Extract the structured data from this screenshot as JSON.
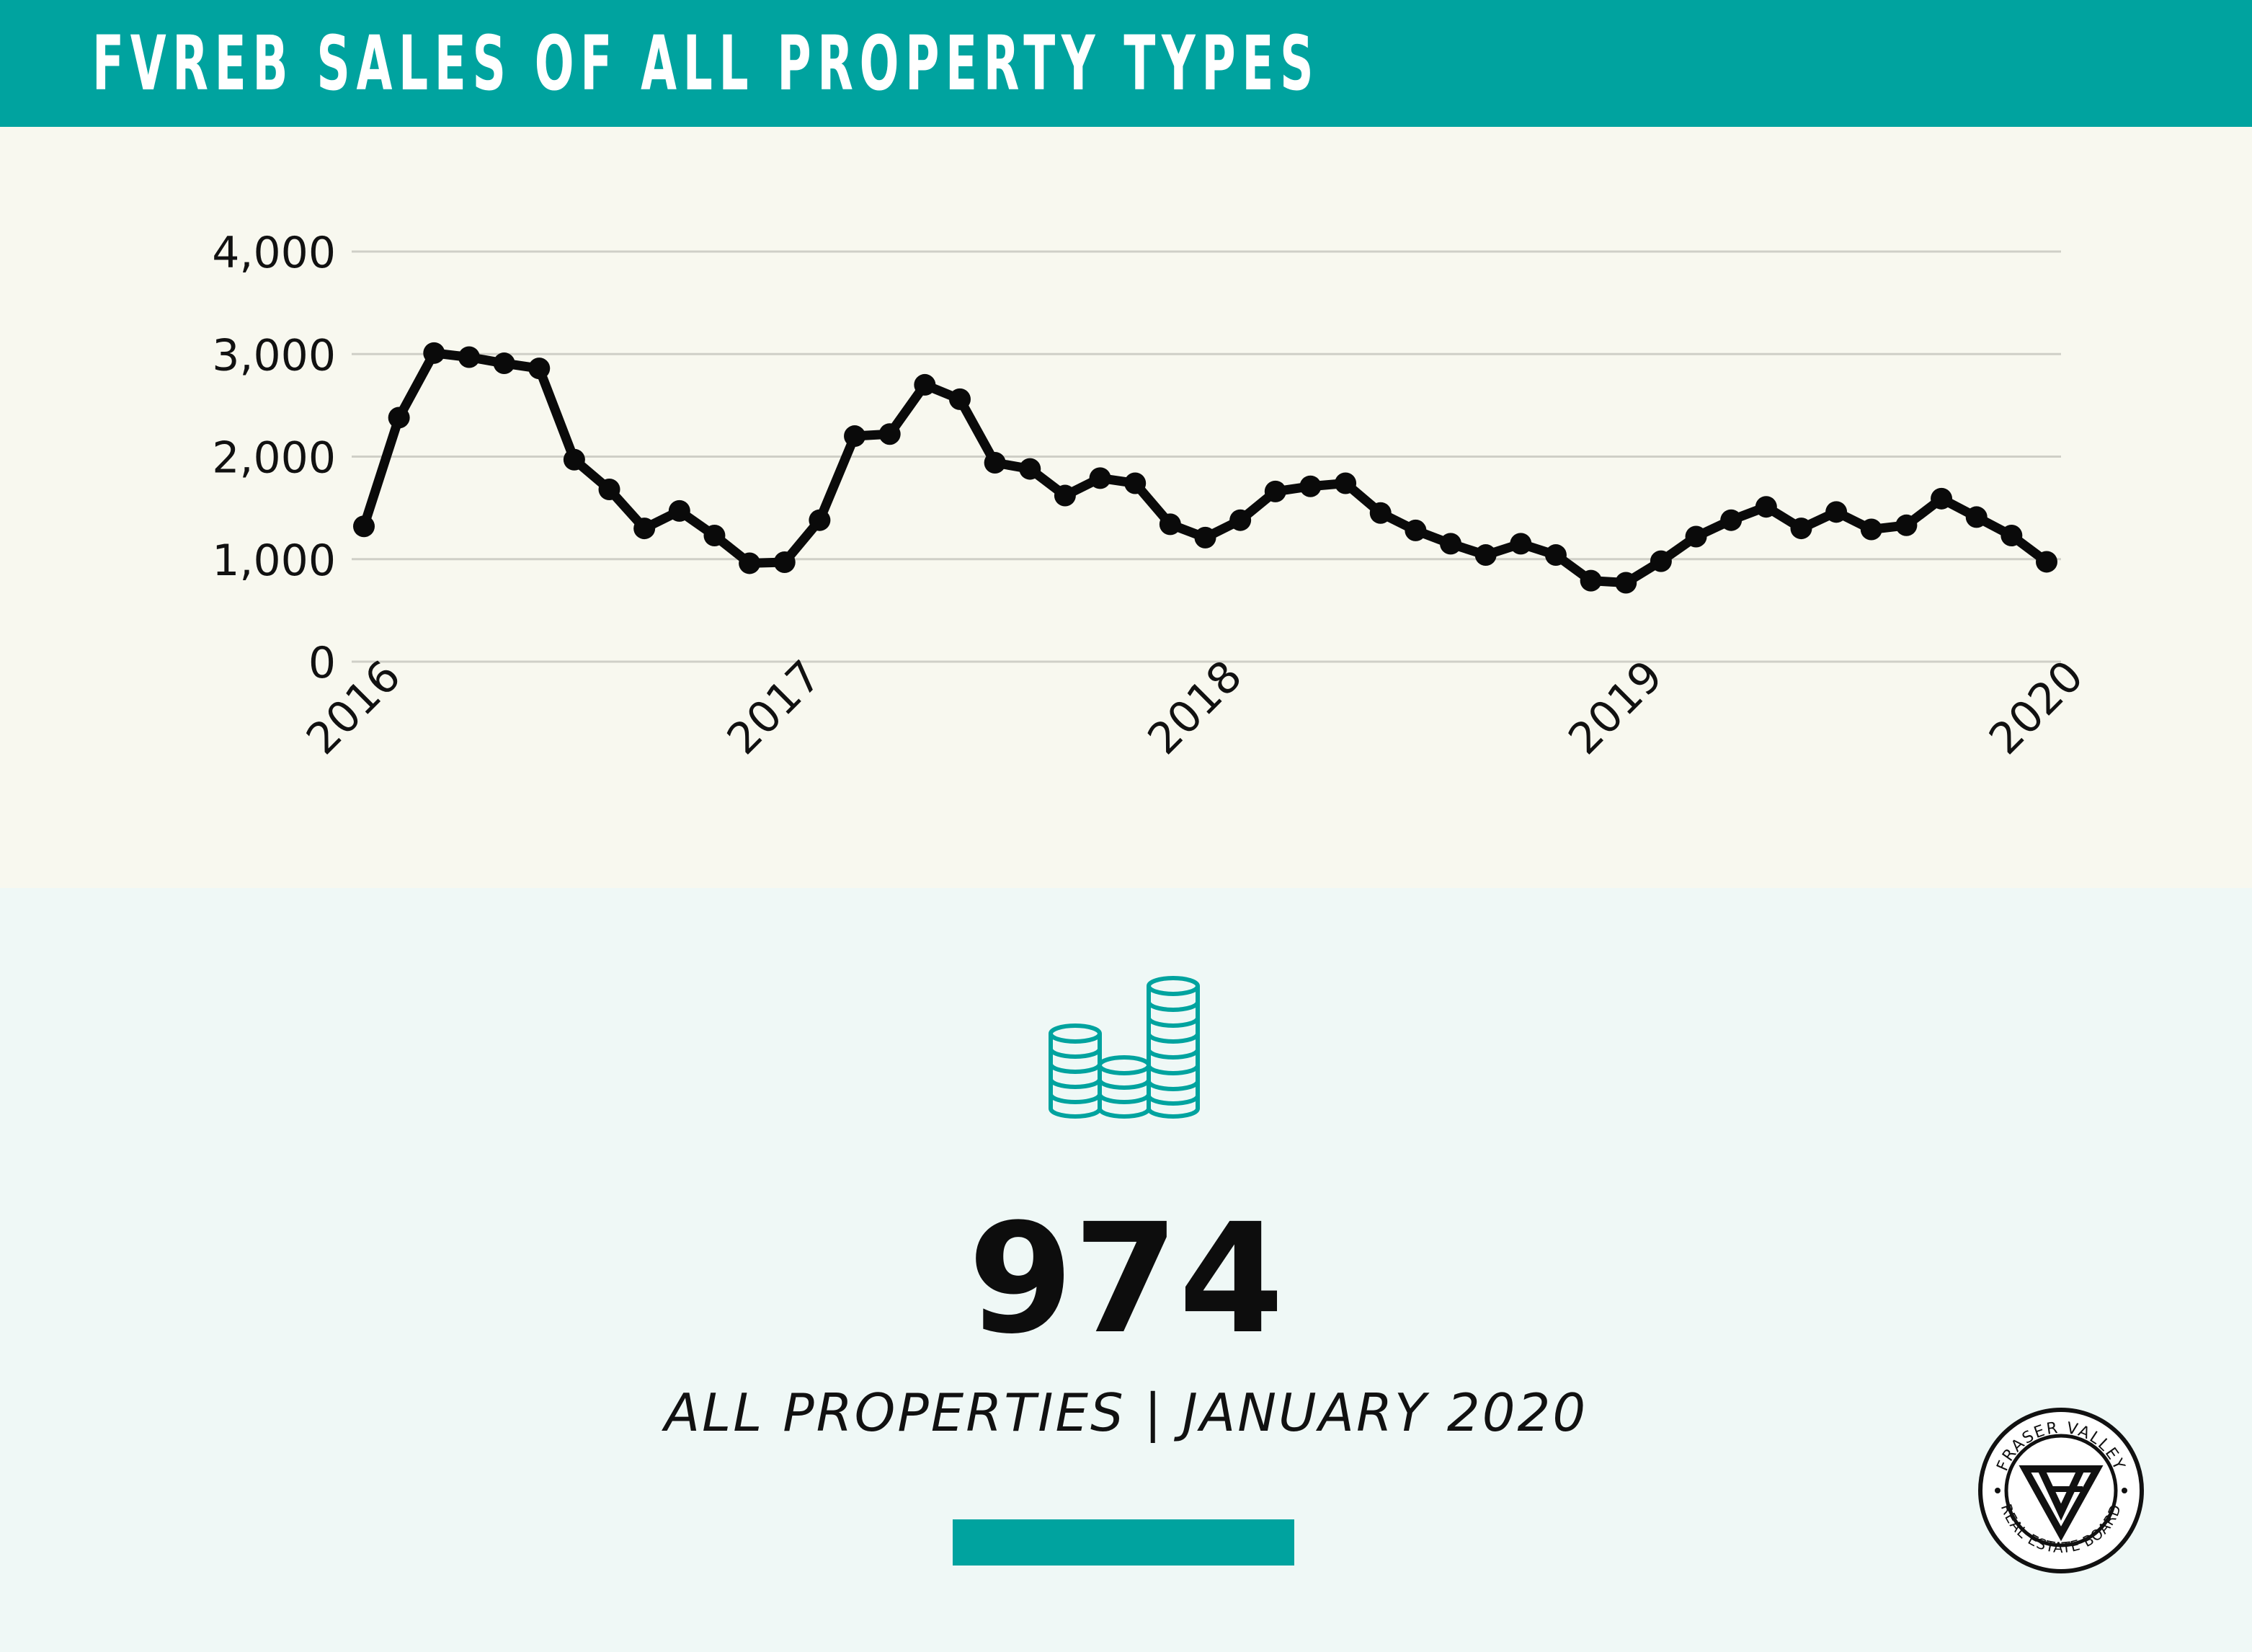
{
  "header": {
    "title": "FVREB SALES OF ALL PROPERTY TYPES"
  },
  "colors": {
    "accent": "#00a39f",
    "line": "#0a0a0a",
    "grid": "#cfcfc7",
    "chart_bg": "#f8f8ef",
    "page_bg": "#eff8f6"
  },
  "chart_data": {
    "type": "line",
    "title": "",
    "xlabel": "",
    "ylabel": "",
    "grid": true,
    "x_range": [
      "2016-01",
      "2020-01"
    ],
    "ylim": [
      0,
      4000
    ],
    "y_ticks": [
      "0",
      "1,000",
      "2,000",
      "3,000",
      "4,000"
    ],
    "x_ticks": [
      "2016",
      "2017",
      "2018",
      "2019",
      "2020"
    ],
    "series": [
      {
        "x": [
          "2016-01",
          "2016-02",
          "2016-03",
          "2016-04",
          "2016-05",
          "2016-06",
          "2016-07",
          "2016-08",
          "2016-09",
          "2016-10",
          "2016-11",
          "2016-12",
          "2017-01",
          "2017-02",
          "2017-03",
          "2017-04",
          "2017-05",
          "2017-06",
          "2017-07",
          "2017-08",
          "2017-09",
          "2017-10",
          "2017-11",
          "2017-12",
          "2018-01",
          "2018-02",
          "2018-03",
          "2018-04",
          "2018-05",
          "2018-06",
          "2018-07",
          "2018-08",
          "2018-09",
          "2018-10",
          "2018-11",
          "2018-12",
          "2019-01",
          "2019-02",
          "2019-03",
          "2019-04",
          "2019-05",
          "2019-06",
          "2019-07",
          "2019-08",
          "2019-09",
          "2019-10",
          "2019-11",
          "2019-12",
          "2020-01"
        ],
        "values": [
          1320,
          2380,
          3010,
          2970,
          2910,
          2860,
          1970,
          1680,
          1300,
          1470,
          1230,
          960,
          970,
          1380,
          2200,
          2220,
          2700,
          2560,
          1940,
          1880,
          1620,
          1790,
          1740,
          1340,
          1210,
          1380,
          1660,
          1710,
          1740,
          1450,
          1280,
          1150,
          1040,
          1150,
          1040,
          790,
          770,
          980,
          1220,
          1380,
          1510,
          1300,
          1460,
          1290,
          1330,
          1590,
          1410,
          1230,
          974
        ]
      }
    ]
  },
  "icons": {
    "coins": "coins-stack-icon",
    "logo": "fvreb-seal-logo"
  },
  "summary": {
    "value": "974",
    "caption": "ALL PROPERTIES | JANUARY 2020"
  },
  "logo": {
    "top_text": "FRASER VALLEY",
    "bottom_text": "REAL ESTATE BOARD"
  }
}
